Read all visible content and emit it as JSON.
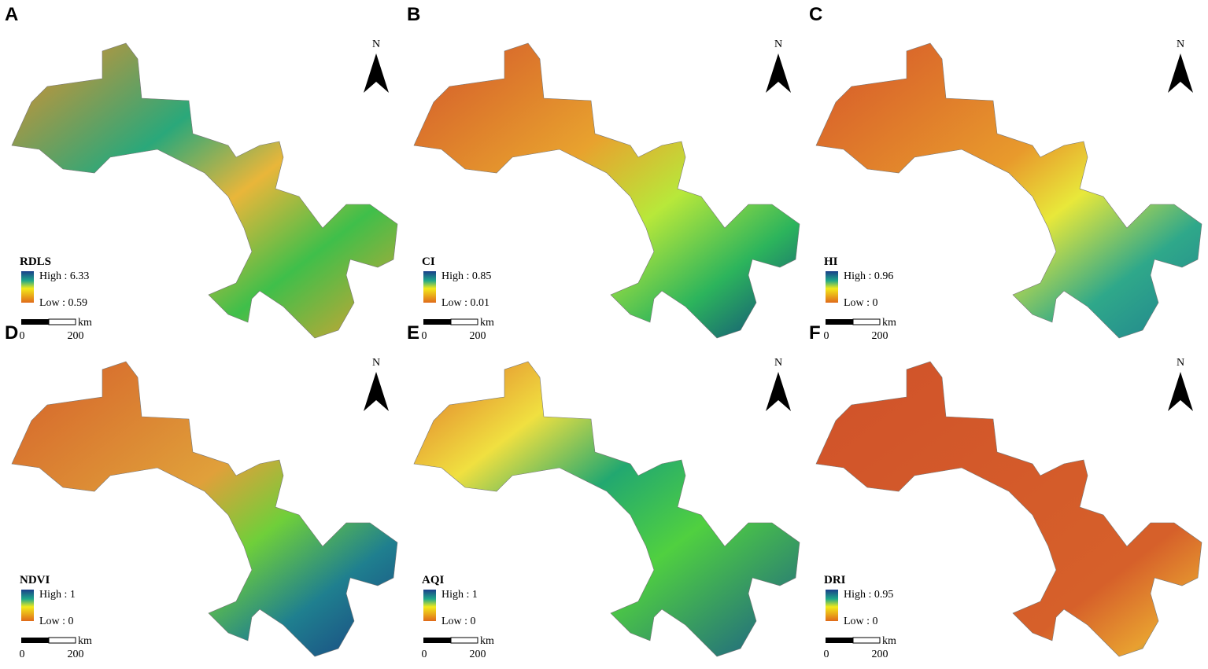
{
  "panels": [
    {
      "letter": "A",
      "legend": {
        "title": "RDLS",
        "high": "High : 6.33",
        "low": "Low : 0.59"
      },
      "scale": {
        "unit": "km",
        "start": "0",
        "end": "200"
      },
      "north": "N"
    },
    {
      "letter": "B",
      "legend": {
        "title": "CI",
        "high": "High : 0.85",
        "low": "Low : 0.01"
      },
      "scale": {
        "unit": "km",
        "start": "0",
        "end": "200"
      },
      "north": "N"
    },
    {
      "letter": "C",
      "legend": {
        "title": "HI",
        "high": "High : 0.96",
        "low": "Low : 0"
      },
      "scale": {
        "unit": "km",
        "start": "0",
        "end": "200"
      },
      "north": "N"
    },
    {
      "letter": "D",
      "legend": {
        "title": "NDVI",
        "high": "High : 1",
        "low": "Low : 0"
      },
      "scale": {
        "unit": "km",
        "start": "0",
        "end": "200"
      },
      "north": "N"
    },
    {
      "letter": "E",
      "legend": {
        "title": "AQI",
        "high": "High : 1",
        "low": "Low : 0"
      },
      "scale": {
        "unit": "km",
        "start": "0",
        "end": "200"
      },
      "north": "N"
    },
    {
      "letter": "F",
      "legend": {
        "title": "DRI",
        "high": "High : 0.95",
        "low": "Low : 0"
      },
      "scale": {
        "unit": "km",
        "start": "0",
        "end": "200"
      },
      "north": "N"
    }
  ]
}
